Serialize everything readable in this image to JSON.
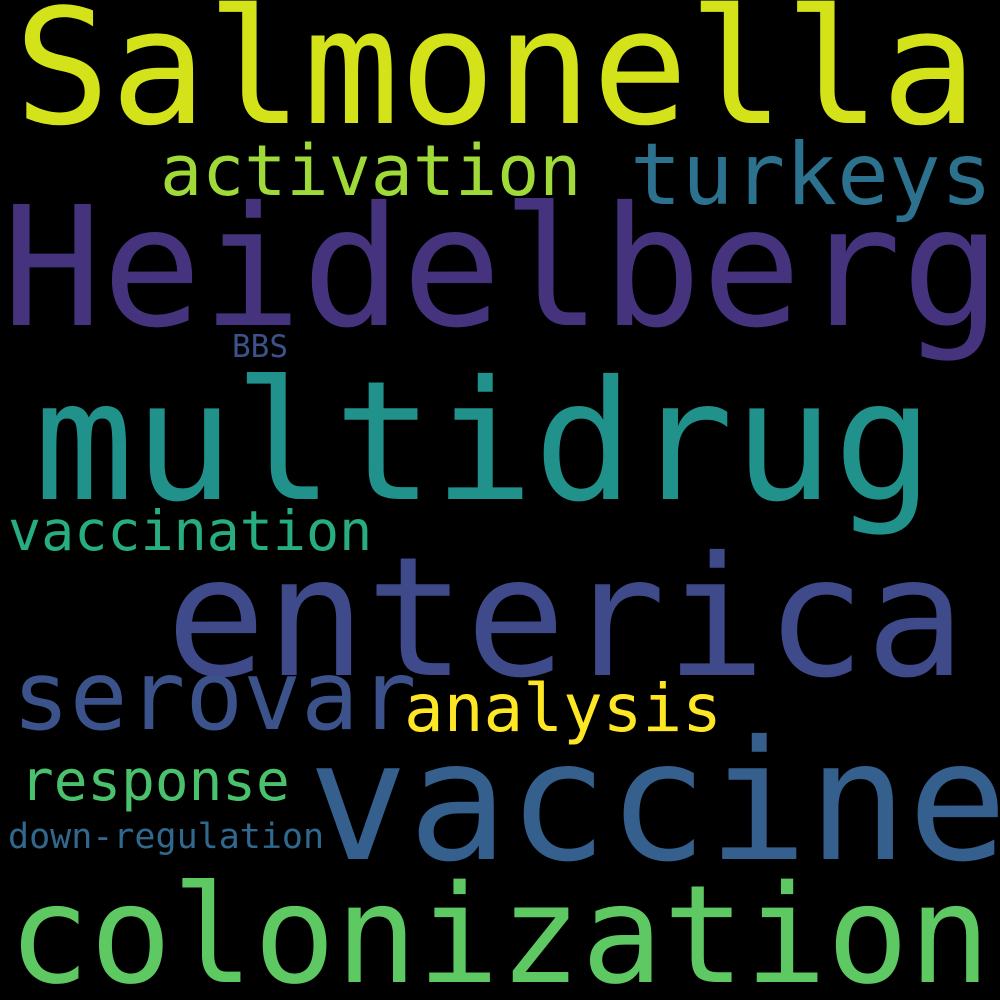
{
  "words": [
    {
      "text": "Salmonella",
      "color": "#d4e21a"
    },
    {
      "text": "Heidelberg",
      "color": "#46337e"
    },
    {
      "text": "multidrug",
      "color": "#21918c"
    },
    {
      "text": "enterica",
      "color": "#3e4a89"
    },
    {
      "text": "vaccine",
      "color": "#355f8d"
    },
    {
      "text": "colonization",
      "color": "#5ec962"
    },
    {
      "text": "serovar",
      "color": "#3b528b"
    },
    {
      "text": "turkeys",
      "color": "#2c728e"
    },
    {
      "text": "activation",
      "color": "#a0da39"
    },
    {
      "text": "analysis",
      "color": "#fde725"
    },
    {
      "text": "vaccination",
      "color": "#27ad81"
    },
    {
      "text": "response",
      "color": "#4ac16d"
    },
    {
      "text": "BBS",
      "color": "#3b528b"
    },
    {
      "text": "down-regulation",
      "color": "#31688e"
    }
  ]
}
